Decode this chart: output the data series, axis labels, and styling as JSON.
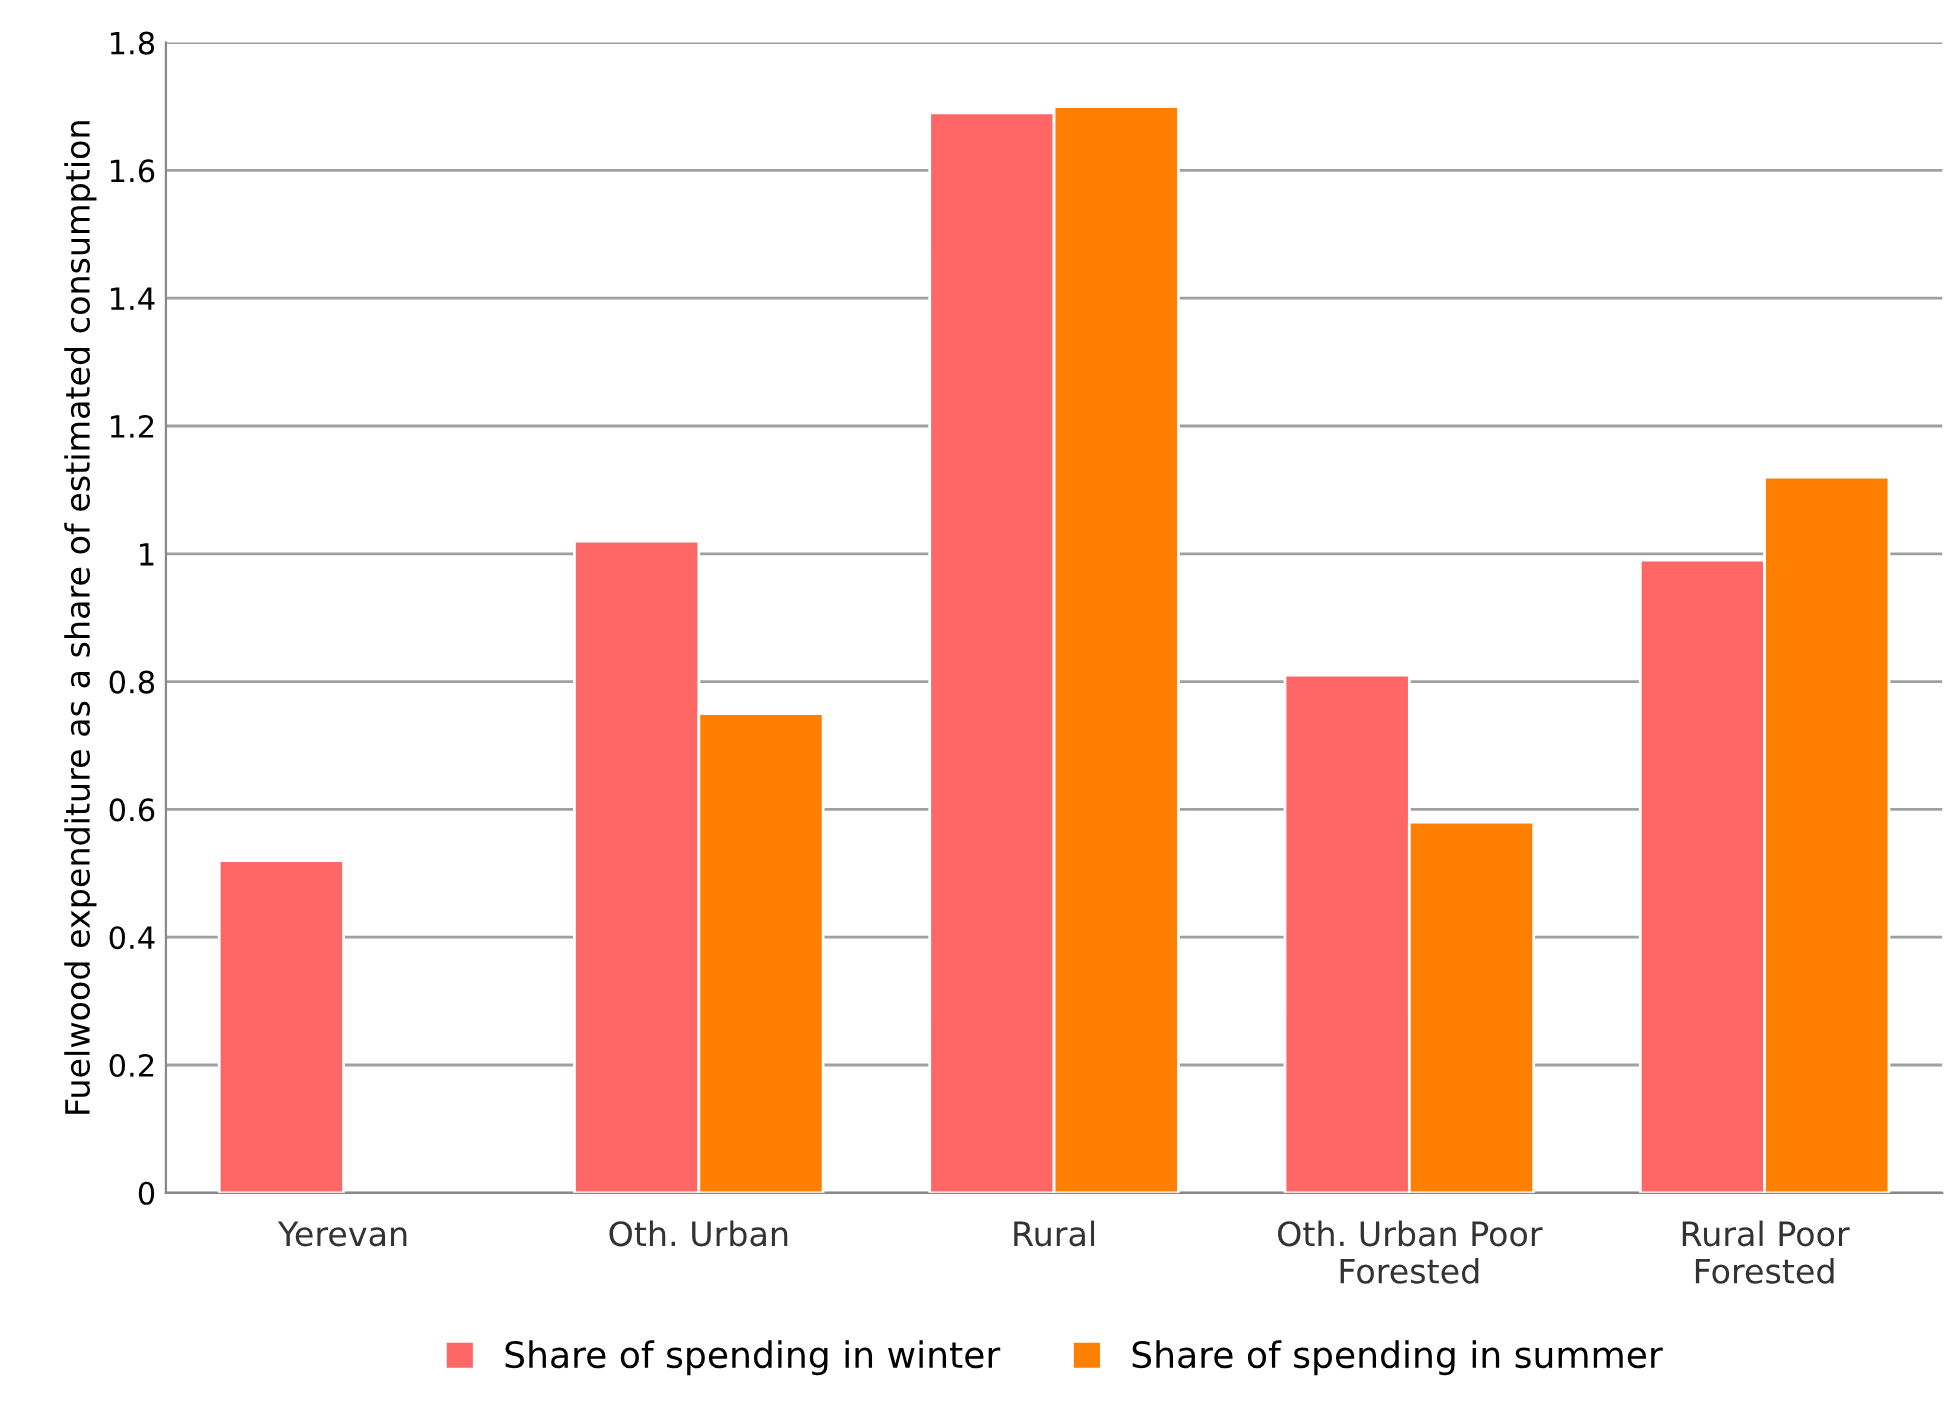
{
  "chart_data": {
    "type": "bar",
    "ylabel": "Fuelwood expenditure as a share of estimated consumption",
    "categories": [
      "Yerevan",
      "Oth. Urban",
      "Rural",
      "Oth. Urban Poor\nForested",
      "Rural Poor\nForested"
    ],
    "series": [
      {
        "name": "Share of spending in winter",
        "color": "#ff6666",
        "values": [
          0.52,
          1.02,
          1.69,
          0.81,
          0.99
        ]
      },
      {
        "name": "Share of spending in summer",
        "color": "#ff8000",
        "values": [
          null,
          0.75,
          1.7,
          0.58,
          1.12
        ]
      }
    ],
    "ylim": [
      0,
      1.8
    ],
    "yticks": [
      0,
      0.2,
      0.4,
      0.6,
      0.8,
      1,
      1.2,
      1.4,
      1.6,
      1.8
    ],
    "grid": "y",
    "legend": "bottom"
  }
}
